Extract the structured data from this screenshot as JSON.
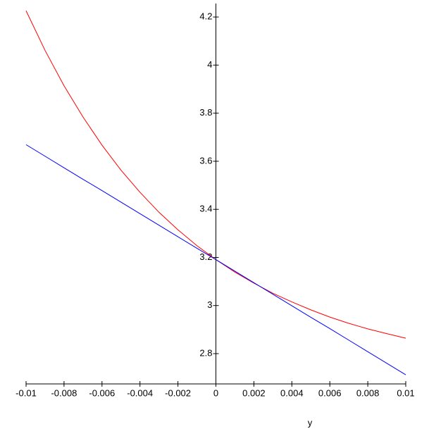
{
  "chart_data": {
    "type": "line",
    "x_label": "y",
    "x": [
      -0.01,
      -0.009,
      -0.008,
      -0.007,
      -0.006,
      -0.005,
      -0.004,
      -0.003,
      -0.002,
      -0.001,
      0,
      0.001,
      0.002,
      0.003,
      0.004,
      0.005,
      0.006,
      0.007,
      0.008,
      0.009,
      0.01
    ],
    "series": [
      {
        "color": "#ff0000",
        "values": [
          4.226,
          4.061,
          3.914,
          3.784,
          3.667,
          3.563,
          3.471,
          3.388,
          3.315,
          3.249,
          3.191,
          3.139,
          3.093,
          3.051,
          3.015,
          2.982,
          2.952,
          2.926,
          2.903,
          2.883,
          2.864
        ]
      },
      {
        "color": "#0000ff",
        "values": [
          3.669,
          3.621,
          3.573,
          3.525,
          3.478,
          3.43,
          3.382,
          3.334,
          3.286,
          3.238,
          3.191,
          3.143,
          3.095,
          3.047,
          2.999,
          2.951,
          2.904,
          2.856,
          2.808,
          2.76,
          2.712
        ]
      }
    ],
    "xlim": [
      -0.01,
      0.01
    ],
    "xticks": [
      -0.01,
      -0.008,
      -0.006,
      -0.004,
      -0.002,
      0,
      0.002,
      0.004,
      0.006,
      0.008,
      0.01
    ],
    "ylim": [
      2.674,
      4.256
    ],
    "yticks": [
      2.8,
      3,
      3.2,
      3.4,
      3.6,
      3.8,
      4,
      4.2
    ]
  }
}
